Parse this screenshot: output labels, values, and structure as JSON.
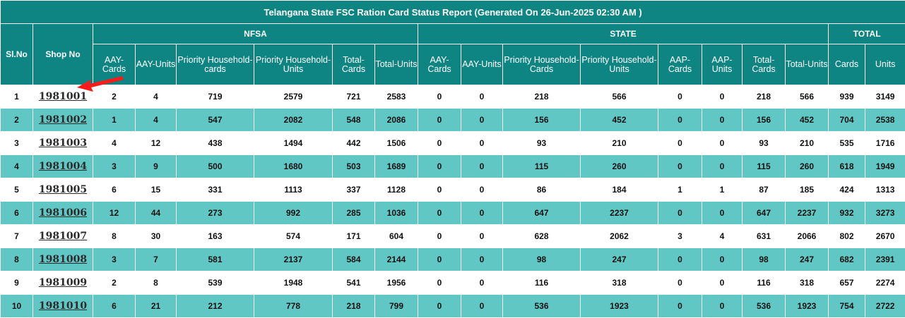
{
  "title": "Telangana State FSC Ration Card Status Report (Generated On 26-Jun-2025 02:30 AM )",
  "headers": {
    "slno": "Sl.No",
    "shop": "Shop No",
    "group_nfsa": "NFSA",
    "group_state": "STATE",
    "group_total": "TOTAL",
    "nfsa_cols": [
      "AAY-Cards",
      "AAY-Units",
      "Priority Household-cards",
      "Priority Household-Units",
      "Total-Cards",
      "Total-Units"
    ],
    "state_cols": [
      "AAY-Cards",
      "AAY-Units",
      "Priority Household-Cards",
      "Priority Household-Units",
      "AAP-Cards",
      "AAP-Units",
      "Total-Cards",
      "Total-Units"
    ],
    "total_cols": [
      "Cards",
      "Units"
    ]
  },
  "rows": [
    {
      "slno": "1",
      "shop": "1981001",
      "values": [
        "2",
        "4",
        "719",
        "2579",
        "721",
        "2583",
        "0",
        "0",
        "218",
        "566",
        "0",
        "0",
        "218",
        "566",
        "939",
        "3149"
      ]
    },
    {
      "slno": "2",
      "shop": "1981002",
      "values": [
        "1",
        "4",
        "547",
        "2082",
        "548",
        "2086",
        "0",
        "0",
        "156",
        "452",
        "0",
        "0",
        "156",
        "452",
        "704",
        "2538"
      ]
    },
    {
      "slno": "3",
      "shop": "1981003",
      "values": [
        "4",
        "12",
        "438",
        "1494",
        "442",
        "1506",
        "0",
        "0",
        "93",
        "210",
        "0",
        "0",
        "93",
        "210",
        "535",
        "1716"
      ]
    },
    {
      "slno": "4",
      "shop": "1981004",
      "values": [
        "3",
        "9",
        "500",
        "1680",
        "503",
        "1689",
        "0",
        "0",
        "115",
        "260",
        "0",
        "0",
        "115",
        "260",
        "618",
        "1949"
      ]
    },
    {
      "slno": "5",
      "shop": "1981005",
      "values": [
        "6",
        "15",
        "331",
        "1113",
        "337",
        "1128",
        "0",
        "0",
        "86",
        "184",
        "1",
        "1",
        "87",
        "185",
        "424",
        "1313"
      ]
    },
    {
      "slno": "6",
      "shop": "1981006",
      "values": [
        "12",
        "44",
        "273",
        "992",
        "285",
        "1036",
        "0",
        "0",
        "647",
        "2237",
        "0",
        "0",
        "647",
        "2237",
        "932",
        "3273"
      ]
    },
    {
      "slno": "7",
      "shop": "1981007",
      "values": [
        "8",
        "30",
        "163",
        "574",
        "171",
        "604",
        "0",
        "0",
        "628",
        "2062",
        "3",
        "4",
        "631",
        "2066",
        "802",
        "2670"
      ]
    },
    {
      "slno": "8",
      "shop": "1981008",
      "values": [
        "3",
        "7",
        "581",
        "2137",
        "584",
        "2144",
        "0",
        "0",
        "98",
        "247",
        "0",
        "0",
        "98",
        "247",
        "682",
        "2391"
      ]
    },
    {
      "slno": "9",
      "shop": "1981009",
      "values": [
        "2",
        "8",
        "539",
        "1948",
        "541",
        "1956",
        "0",
        "0",
        "116",
        "318",
        "0",
        "0",
        "116",
        "318",
        "657",
        "2274"
      ]
    },
    {
      "slno": "10",
      "shop": "1981010",
      "values": [
        "6",
        "21",
        "212",
        "778",
        "218",
        "799",
        "0",
        "0",
        "536",
        "1923",
        "0",
        "0",
        "536",
        "1923",
        "754",
        "2722"
      ]
    }
  ],
  "colors": {
    "header_bg": "#0e8583",
    "row_alt_bg": "#61c7c4",
    "row_bg": "#ffffff",
    "annotation_arrow": "#ff1a1a"
  },
  "annotation": {
    "icon": "red-pointer-arrow-icon"
  }
}
